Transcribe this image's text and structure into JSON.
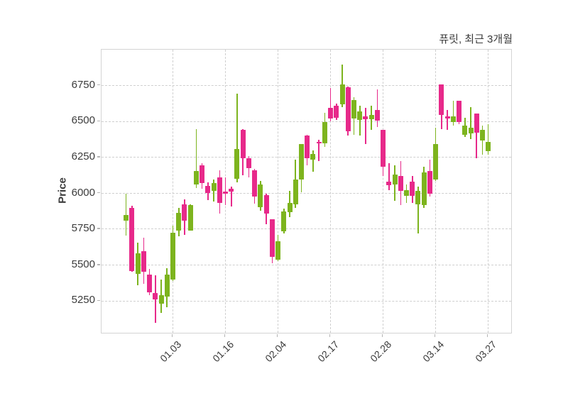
{
  "title": "퓨릿, 최근 3개월",
  "y_axis": {
    "label": "Price"
  },
  "chart_data": {
    "type": "candlestick",
    "title": "퓨릿, 최근 3개월",
    "ylabel": "Price",
    "xlabel": "",
    "grid": "dashed-on",
    "legend": "none",
    "y_range": [
      5020,
      7000
    ],
    "y_ticks": [
      5250,
      5500,
      5750,
      6000,
      6250,
      6500,
      6750
    ],
    "x_tick_labels": [
      "01.03",
      "01.16",
      "02.04",
      "02.17",
      "02.28",
      "03.14",
      "03.27"
    ],
    "x_tick_candle_indices": [
      8,
      17,
      26,
      35,
      44,
      53,
      62
    ],
    "up_color": "#7db41e",
    "down_color": "#e7298a",
    "candles_format": [
      "open",
      "high",
      "low",
      "close"
    ],
    "candles": [
      [
        5810,
        6000,
        5705,
        5850
      ],
      [
        5900,
        5915,
        5455,
        5460
      ],
      [
        5440,
        5655,
        5360,
        5585
      ],
      [
        5600,
        5690,
        5370,
        5455
      ],
      [
        5435,
        5475,
        5290,
        5310
      ],
      [
        5305,
        5430,
        5100,
        5260
      ],
      [
        5230,
        5400,
        5170,
        5290
      ],
      [
        5280,
        5480,
        5210,
        5433
      ],
      [
        5400,
        5775,
        5390,
        5727
      ],
      [
        5743,
        5900,
        5700,
        5866
      ],
      [
        5923,
        5956,
        5711,
        5809
      ],
      [
        5743,
        5925,
        5740,
        5920
      ],
      [
        6064,
        6446,
        6039,
        6157
      ],
      [
        6196,
        6211,
        6030,
        6074
      ],
      [
        6054,
        6078,
        5951,
        6005
      ],
      [
        6015,
        6098,
        5941,
        6074
      ],
      [
        6113,
        6162,
        5858,
        5931
      ],
      [
        6005,
        6113,
        5917,
        5995
      ],
      [
        6034,
        6049,
        5907,
        6010
      ],
      [
        6103,
        6692,
        6078,
        6309
      ],
      [
        6441,
        6445,
        6128,
        6245
      ],
      [
        6245,
        6260,
        6113,
        6177
      ],
      [
        6162,
        6170,
        5930,
        5980
      ],
      [
        5902,
        6088,
        5877,
        6064
      ],
      [
        5990,
        6000,
        5785,
        5858
      ],
      [
        5819,
        5820,
        5515,
        5559
      ],
      [
        5540,
        5712,
        5528,
        5665
      ],
      [
        5737,
        5892,
        5721,
        5876
      ],
      [
        5868,
        6015,
        5835,
        5933
      ],
      [
        5925,
        6235,
        5900,
        6097
      ],
      [
        6096,
        6345,
        6005,
        6342
      ],
      [
        6405,
        6408,
        6195,
        6245
      ],
      [
        6234,
        6300,
        6150,
        6274
      ],
      [
        6352,
        6375,
        6225,
        6344
      ],
      [
        6348,
        6560,
        6325,
        6495
      ],
      [
        6593,
        6732,
        6503,
        6520
      ],
      [
        6609,
        6626,
        6511,
        6528
      ],
      [
        6618,
        6895,
        6601,
        6756
      ],
      [
        6740,
        6742,
        6405,
        6430
      ],
      [
        6520,
        6667,
        6405,
        6650
      ],
      [
        6513,
        6611,
        6405,
        6570
      ],
      [
        6538,
        6595,
        6342,
        6518
      ],
      [
        6518,
        6611,
        6440,
        6545
      ],
      [
        6578,
        6725,
        6464,
        6505
      ],
      [
        6440,
        6442,
        6121,
        6186
      ],
      [
        6080,
        6211,
        6023,
        6055
      ],
      [
        6064,
        6195,
        5950,
        6129
      ],
      [
        6121,
        6227,
        5917,
        6015
      ],
      [
        5982,
        6064,
        5933,
        6023
      ],
      [
        6080,
        6120,
        5935,
        5985
      ],
      [
        5925,
        6045,
        5720,
        6015
      ],
      [
        5917,
        6186,
        5900,
        6146
      ],
      [
        6154,
        6235,
        5980,
        5999
      ],
      [
        6096,
        6456,
        6088,
        6342
      ],
      [
        6758,
        6760,
        6448,
        6545
      ],
      [
        6538,
        6578,
        6440,
        6521
      ],
      [
        6497,
        6643,
        6470,
        6538
      ],
      [
        6643,
        6645,
        6480,
        6497
      ],
      [
        6407,
        6525,
        6395,
        6472
      ],
      [
        6415,
        6600,
        6380,
        6456
      ],
      [
        6554,
        6556,
        6245,
        6423
      ],
      [
        6366,
        6472,
        6268,
        6440
      ],
      [
        6293,
        6480,
        6268,
        6358
      ]
    ]
  }
}
